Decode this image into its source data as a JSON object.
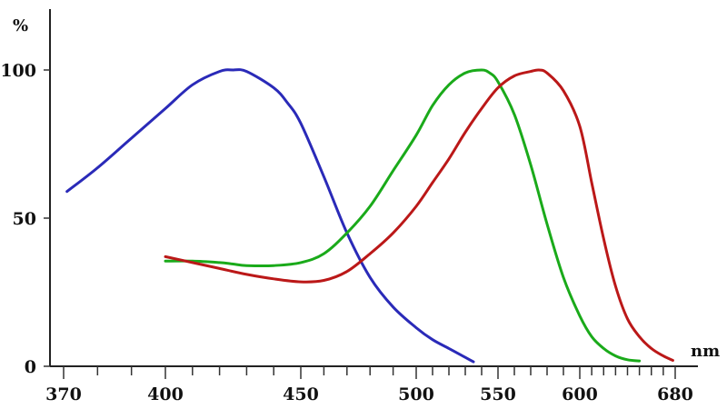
{
  "chart_data": {
    "type": "line",
    "xlabel": "nm",
    "ylabel": "%",
    "xlim": [
      370,
      680
    ],
    "ylim": [
      0,
      100
    ],
    "y_ticks": [
      0,
      50,
      100
    ],
    "x_tick_labels": [
      370,
      400,
      450,
      500,
      550,
      600,
      680
    ],
    "x_minor_ticks": [
      380,
      390,
      410,
      420,
      430,
      440,
      460,
      470,
      480,
      490,
      510,
      520,
      530,
      540,
      560,
      570,
      580,
      590,
      610,
      620,
      630,
      640,
      650,
      660,
      670
    ],
    "grid": false,
    "series": [
      {
        "color": "#2a2ab8",
        "x": [
          371,
          380,
          390,
          400,
          410,
          420,
          425,
          430,
          440,
          445,
          450,
          460,
          470,
          480,
          490,
          500,
          510,
          520,
          530,
          535
        ],
        "y": [
          59,
          67,
          77,
          87,
          95,
          99.5,
          100,
          99.5,
          94,
          89,
          82,
          64,
          45,
          30,
          20,
          13,
          9,
          6,
          3,
          1.5
        ]
      },
      {
        "color": "#1aaa1a",
        "x": [
          400,
          410,
          420,
          425,
          430,
          440,
          450,
          460,
          470,
          480,
          490,
          500,
          510,
          520,
          530,
          540,
          545,
          550,
          560,
          570,
          580,
          590,
          600,
          610,
          620,
          630,
          640,
          650
        ],
        "y": [
          35.5,
          35.5,
          35,
          34.5,
          34,
          34,
          35,
          38,
          45,
          54,
          66,
          78,
          88,
          95,
          99,
          100,
          99,
          96,
          85,
          68,
          48,
          30,
          17,
          10,
          6,
          3.5,
          2.2,
          1.8
        ]
      },
      {
        "color": "#bb1818",
        "x": [
          400,
          410,
          420,
          430,
          440,
          450,
          460,
          470,
          480,
          490,
          500,
          510,
          520,
          530,
          540,
          550,
          560,
          570,
          575,
          580,
          590,
          600,
          610,
          620,
          630,
          640,
          650,
          660,
          670,
          678
        ],
        "y": [
          37,
          35,
          33,
          31,
          29.5,
          28.5,
          29,
          32,
          38,
          45,
          54,
          62,
          70,
          79,
          87,
          94,
          98,
          99.5,
          100,
          99,
          93,
          81,
          62,
          43,
          27,
          16,
          10,
          6,
          3.5,
          2
        ]
      }
    ]
  }
}
